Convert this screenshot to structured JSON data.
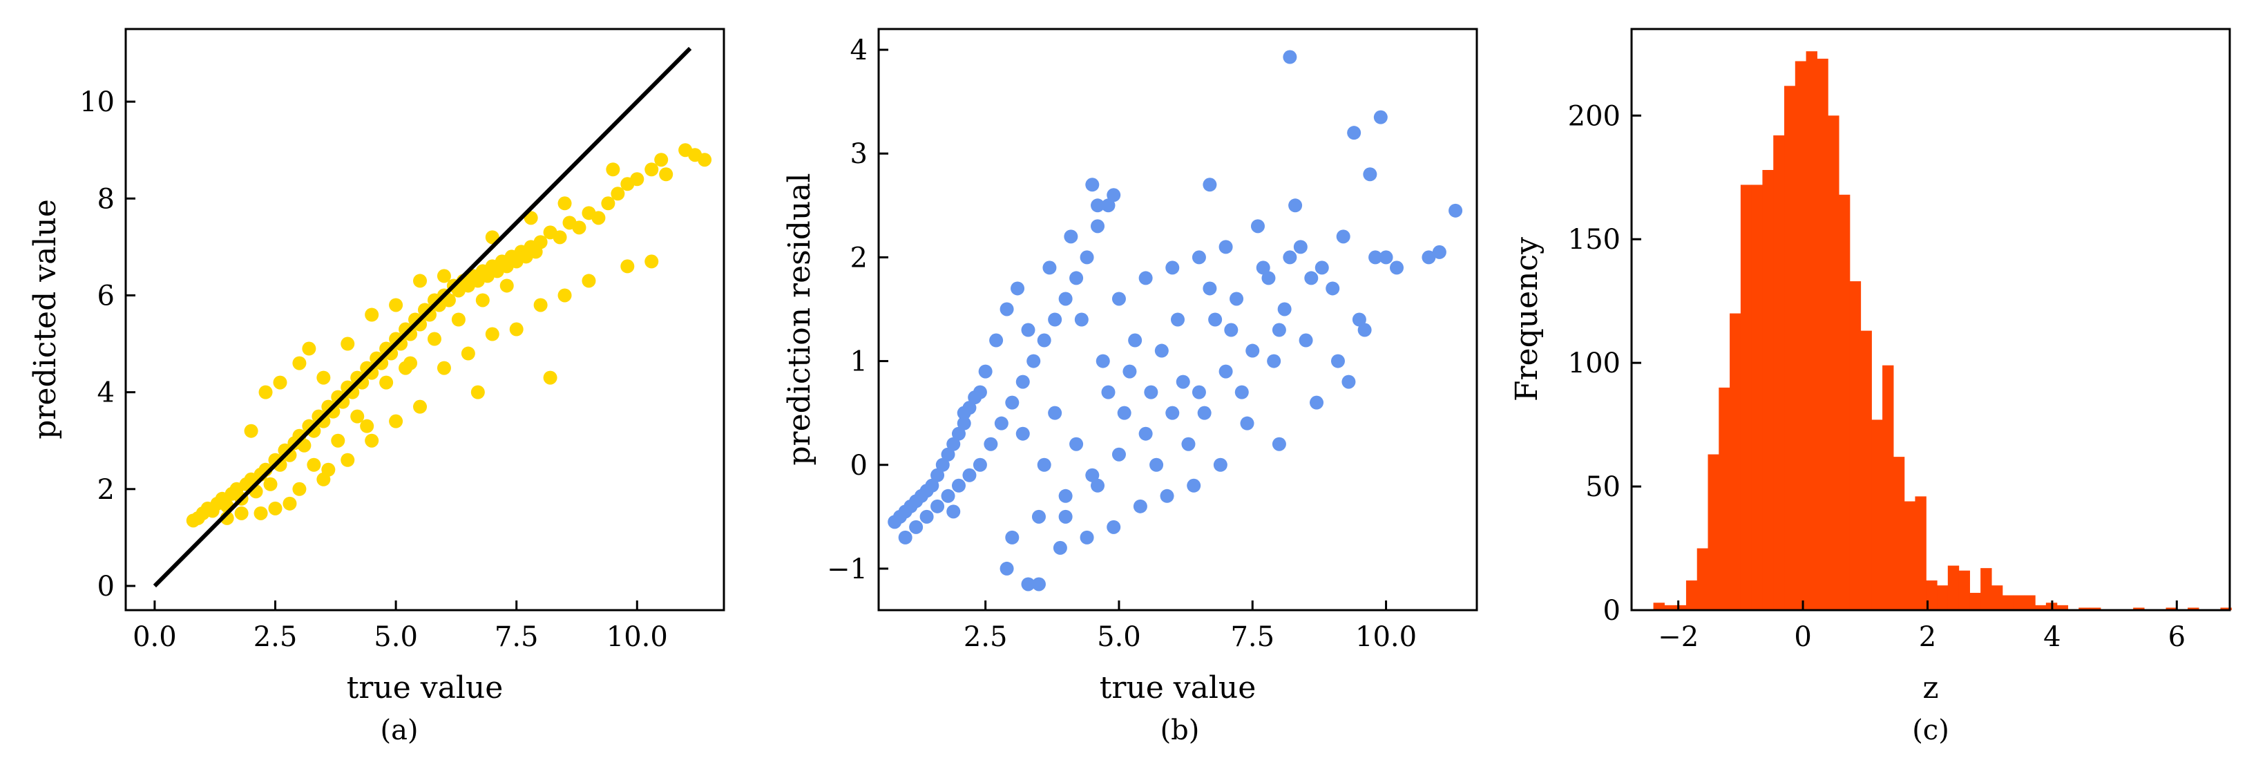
{
  "colors": {
    "panel_a_points": "#FFD700",
    "panel_b_points": "#6495ED",
    "panel_c_bars": "#FF4500",
    "identity_line": "#000000",
    "axes": "#000000"
  },
  "chart_data": [
    {
      "id": "a",
      "type": "scatter",
      "panel_label": "(a)",
      "xlabel": "true value",
      "ylabel": "predicted value",
      "xlim": [
        -0.6,
        11.8
      ],
      "ylim": [
        -0.5,
        11.5
      ],
      "xticks": [
        0.0,
        2.5,
        5.0,
        7.5,
        10.0
      ],
      "xtick_labels": [
        "0.0",
        "2.5",
        "5.0",
        "7.5",
        "10.0"
      ],
      "yticks": [
        0,
        2,
        4,
        6,
        8,
        10
      ],
      "ytick_labels": [
        "0",
        "2",
        "4",
        "6",
        "8",
        "10"
      ],
      "reference_line": {
        "x": [
          0,
          11.1
        ],
        "y": [
          0,
          11.1
        ]
      },
      "points": [
        [
          0.8,
          1.35
        ],
        [
          0.9,
          1.4
        ],
        [
          1.0,
          1.5
        ],
        [
          1.1,
          1.6
        ],
        [
          1.2,
          1.55
        ],
        [
          1.3,
          1.7
        ],
        [
          1.4,
          1.8
        ],
        [
          1.5,
          1.65
        ],
        [
          1.6,
          1.9
        ],
        [
          1.7,
          2.0
        ],
        [
          1.8,
          1.8
        ],
        [
          1.9,
          2.1
        ],
        [
          2.0,
          2.2
        ],
        [
          2.1,
          1.95
        ],
        [
          2.2,
          2.3
        ],
        [
          2.3,
          2.4
        ],
        [
          2.4,
          2.1
        ],
        [
          2.5,
          2.6
        ],
        [
          2.6,
          2.5
        ],
        [
          2.7,
          2.8
        ],
        [
          2.8,
          2.7
        ],
        [
          2.9,
          2.95
        ],
        [
          3.0,
          3.1
        ],
        [
          3.1,
          2.9
        ],
        [
          3.2,
          3.3
        ],
        [
          3.3,
          3.2
        ],
        [
          3.4,
          3.5
        ],
        [
          3.5,
          3.4
        ],
        [
          3.6,
          3.7
        ],
        [
          3.7,
          3.6
        ],
        [
          3.8,
          3.9
        ],
        [
          3.9,
          3.8
        ],
        [
          4.0,
          4.1
        ],
        [
          4.1,
          4.0
        ],
        [
          4.2,
          4.3
        ],
        [
          4.3,
          4.2
        ],
        [
          4.4,
          4.5
        ],
        [
          4.5,
          4.4
        ],
        [
          4.6,
          4.7
        ],
        [
          4.7,
          4.6
        ],
        [
          4.8,
          4.9
        ],
        [
          4.9,
          4.8
        ],
        [
          5.0,
          5.1
        ],
        [
          5.1,
          5.0
        ],
        [
          5.2,
          5.3
        ],
        [
          5.3,
          5.2
        ],
        [
          5.4,
          5.5
        ],
        [
          5.5,
          5.4
        ],
        [
          5.6,
          5.7
        ],
        [
          5.7,
          5.6
        ],
        [
          5.8,
          5.9
        ],
        [
          5.9,
          5.8
        ],
        [
          6.0,
          6.0
        ],
        [
          6.1,
          5.9
        ],
        [
          6.2,
          6.2
        ],
        [
          6.3,
          6.1
        ],
        [
          6.4,
          6.3
        ],
        [
          6.5,
          6.2
        ],
        [
          6.6,
          6.4
        ],
        [
          6.7,
          6.3
        ],
        [
          6.8,
          6.5
        ],
        [
          6.9,
          6.4
        ],
        [
          7.0,
          6.6
        ],
        [
          7.1,
          6.5
        ],
        [
          7.2,
          6.7
        ],
        [
          7.3,
          6.6
        ],
        [
          7.4,
          6.8
        ],
        [
          7.5,
          6.7
        ],
        [
          7.6,
          6.9
        ],
        [
          7.7,
          6.8
        ],
        [
          7.8,
          7.0
        ],
        [
          7.9,
          6.9
        ],
        [
          8.0,
          7.1
        ],
        [
          8.2,
          7.3
        ],
        [
          8.4,
          7.2
        ],
        [
          8.6,
          7.5
        ],
        [
          8.8,
          7.4
        ],
        [
          9.0,
          7.7
        ],
        [
          9.2,
          7.6
        ],
        [
          9.4,
          7.9
        ],
        [
          9.6,
          8.1
        ],
        [
          9.8,
          8.3
        ],
        [
          10.0,
          8.4
        ],
        [
          10.3,
          8.6
        ],
        [
          10.6,
          8.5
        ],
        [
          11.0,
          9.0
        ],
        [
          11.2,
          8.9
        ],
        [
          11.4,
          8.8
        ],
        [
          2.0,
          3.2
        ],
        [
          2.3,
          4.0
        ],
        [
          2.6,
          4.2
        ],
        [
          3.0,
          4.6
        ],
        [
          3.2,
          4.9
        ],
        [
          3.5,
          4.3
        ],
        [
          4.0,
          5.0
        ],
        [
          4.5,
          5.6
        ],
        [
          5.0,
          5.8
        ],
        [
          5.5,
          6.3
        ],
        [
          6.0,
          6.4
        ],
        [
          7.0,
          7.2
        ],
        [
          7.8,
          7.6
        ],
        [
          8.5,
          7.9
        ],
        [
          9.5,
          8.6
        ],
        [
          10.5,
          8.8
        ],
        [
          8.2,
          4.3
        ],
        [
          6.7,
          4.0
        ],
        [
          9.8,
          6.6
        ],
        [
          10.3,
          6.7
        ],
        [
          2.5,
          1.6
        ],
        [
          3.0,
          2.0
        ],
        [
          3.5,
          2.2
        ],
        [
          4.0,
          2.6
        ],
        [
          4.5,
          3.0
        ],
        [
          5.0,
          3.4
        ],
        [
          5.5,
          3.7
        ],
        [
          6.0,
          4.5
        ],
        [
          6.5,
          4.8
        ],
        [
          7.0,
          5.2
        ],
        [
          7.5,
          5.3
        ],
        [
          8.0,
          5.8
        ],
        [
          8.5,
          6.0
        ],
        [
          9.0,
          6.3
        ],
        [
          1.5,
          1.4
        ],
        [
          1.8,
          1.5
        ],
        [
          2.2,
          1.5
        ],
        [
          2.8,
          1.7
        ],
        [
          3.3,
          2.5
        ],
        [
          3.8,
          3.0
        ],
        [
          4.2,
          3.5
        ],
        [
          4.8,
          4.2
        ],
        [
          5.3,
          4.6
        ],
        [
          5.8,
          5.1
        ],
        [
          6.3,
          5.5
        ],
        [
          6.8,
          5.9
        ],
        [
          7.3,
          6.2
        ],
        [
          3.6,
          2.4
        ],
        [
          4.4,
          3.3
        ],
        [
          5.2,
          4.5
        ]
      ]
    },
    {
      "id": "b",
      "type": "scatter",
      "panel_label": "(b)",
      "xlabel": "true value",
      "ylabel": "prediction residual",
      "xlim": [
        0.5,
        11.7
      ],
      "ylim": [
        -1.4,
        4.2
      ],
      "xticks": [
        2.5,
        5.0,
        7.5,
        10.0
      ],
      "xtick_labels": [
        "2.5",
        "5.0",
        "7.5",
        "10.0"
      ],
      "yticks": [
        -1,
        0,
        1,
        2,
        3,
        4
      ],
      "ytick_labels": [
        "−1",
        "0",
        "1",
        "2",
        "3",
        "4"
      ],
      "points": [
        [
          0.8,
          -0.55
        ],
        [
          0.9,
          -0.5
        ],
        [
          1.0,
          -0.45
        ],
        [
          1.1,
          -0.4
        ],
        [
          1.2,
          -0.35
        ],
        [
          1.3,
          -0.3
        ],
        [
          1.4,
          -0.25
        ],
        [
          1.5,
          -0.2
        ],
        [
          1.6,
          -0.1
        ],
        [
          1.7,
          0.0
        ],
        [
          1.8,
          0.1
        ],
        [
          1.9,
          0.2
        ],
        [
          2.0,
          0.3
        ],
        [
          2.1,
          0.4
        ],
        [
          2.2,
          0.55
        ],
        [
          2.3,
          0.65
        ],
        [
          1.0,
          -0.7
        ],
        [
          1.2,
          -0.6
        ],
        [
          1.4,
          -0.5
        ],
        [
          1.6,
          -0.4
        ],
        [
          1.8,
          -0.3
        ],
        [
          2.0,
          -0.2
        ],
        [
          2.2,
          -0.1
        ],
        [
          2.4,
          0.0
        ],
        [
          2.6,
          0.2
        ],
        [
          2.8,
          0.4
        ],
        [
          3.0,
          0.6
        ],
        [
          3.2,
          0.8
        ],
        [
          3.4,
          1.0
        ],
        [
          3.6,
          1.2
        ],
        [
          3.8,
          1.4
        ],
        [
          4.0,
          1.6
        ],
        [
          4.2,
          1.8
        ],
        [
          4.4,
          2.0
        ],
        [
          4.6,
          2.3
        ],
        [
          4.8,
          2.5
        ],
        [
          2.9,
          -1.0
        ],
        [
          3.3,
          -1.15
        ],
        [
          3.5,
          -1.15
        ],
        [
          3.0,
          -0.7
        ],
        [
          3.5,
          -0.5
        ],
        [
          4.0,
          -0.3
        ],
        [
          4.5,
          -0.1
        ],
        [
          5.0,
          0.1
        ],
        [
          5.5,
          0.3
        ],
        [
          6.0,
          0.5
        ],
        [
          6.5,
          0.7
        ],
        [
          7.0,
          0.9
        ],
        [
          7.5,
          1.1
        ],
        [
          8.0,
          1.3
        ],
        [
          3.2,
          0.3
        ],
        [
          3.8,
          0.5
        ],
        [
          4.2,
          0.2
        ],
        [
          4.8,
          0.7
        ],
        [
          5.2,
          0.9
        ],
        [
          5.8,
          1.1
        ],
        [
          6.2,
          0.8
        ],
        [
          6.8,
          1.4
        ],
        [
          7.2,
          1.6
        ],
        [
          7.8,
          1.8
        ],
        [
          8.2,
          2.0
        ],
        [
          8.8,
          1.9
        ],
        [
          9.2,
          2.2
        ],
        [
          9.8,
          2.0
        ],
        [
          10.2,
          1.9
        ],
        [
          10.8,
          2.0
        ],
        [
          11.3,
          2.45
        ],
        [
          11.0,
          2.05
        ],
        [
          9.9,
          3.35
        ],
        [
          9.4,
          3.2
        ],
        [
          8.2,
          3.93
        ],
        [
          9.7,
          2.8
        ],
        [
          6.7,
          2.7
        ],
        [
          4.5,
          2.7
        ],
        [
          4.9,
          2.6
        ],
        [
          4.6,
          2.5
        ],
        [
          7.6,
          2.3
        ],
        [
          8.4,
          2.1
        ],
        [
          9.6,
          1.3
        ],
        [
          9.3,
          0.8
        ],
        [
          8.7,
          0.6
        ],
        [
          8.0,
          0.2
        ],
        [
          7.4,
          0.4
        ],
        [
          6.9,
          0.0
        ],
        [
          6.4,
          -0.2
        ],
        [
          5.9,
          -0.3
        ],
        [
          5.4,
          -0.4
        ],
        [
          4.9,
          -0.6
        ],
        [
          4.4,
          -0.7
        ],
        [
          3.9,
          -0.8
        ],
        [
          5.0,
          1.6
        ],
        [
          5.5,
          1.8
        ],
        [
          6.0,
          1.9
        ],
        [
          6.5,
          2.0
        ],
        [
          7.0,
          2.1
        ],
        [
          5.3,
          1.2
        ],
        [
          6.1,
          1.4
        ],
        [
          7.1,
          1.3
        ],
        [
          8.1,
          1.5
        ],
        [
          9.0,
          1.7
        ],
        [
          2.5,
          0.9
        ],
        [
          2.7,
          1.2
        ],
        [
          2.9,
          1.5
        ],
        [
          3.1,
          1.7
        ],
        [
          3.3,
          1.3
        ],
        [
          3.7,
          1.9
        ],
        [
          4.1,
          2.2
        ],
        [
          4.3,
          1.4
        ],
        [
          4.7,
          1.0
        ],
        [
          5.1,
          0.5
        ],
        [
          5.7,
          0.0
        ],
        [
          6.3,
          0.2
        ],
        [
          6.6,
          0.5
        ],
        [
          7.3,
          0.7
        ],
        [
          7.9,
          1.0
        ],
        [
          8.5,
          1.2
        ],
        [
          9.1,
          1.0
        ],
        [
          9.5,
          1.4
        ],
        [
          10.0,
          2.0
        ],
        [
          3.6,
          0.0
        ],
        [
          4.0,
          -0.5
        ],
        [
          4.6,
          -0.2
        ],
        [
          5.6,
          0.7
        ],
        [
          6.7,
          1.7
        ],
        [
          7.7,
          1.9
        ],
        [
          8.3,
          2.5
        ],
        [
          8.6,
          1.8
        ],
        [
          2.4,
          0.7
        ],
        [
          2.1,
          0.5
        ],
        [
          1.9,
          -0.45
        ]
      ]
    },
    {
      "id": "c",
      "type": "bar",
      "subtype": "histogram",
      "panel_label": "(c)",
      "xlabel": "z",
      "ylabel": "Frequency",
      "xlim": [
        -2.75,
        6.85
      ],
      "ylim": [
        0,
        235
      ],
      "xticks": [
        -2,
        0,
        2,
        4,
        6
      ],
      "xtick_labels": [
        "−2",
        "0",
        "2",
        "4",
        "6"
      ],
      "yticks": [
        0,
        50,
        100,
        150,
        200
      ],
      "ytick_labels": [
        "0",
        "50",
        "100",
        "150",
        "200"
      ],
      "bin_start": -2.4,
      "bin_width": 0.175,
      "counts": [
        3,
        2,
        2,
        12,
        25,
        63,
        90,
        120,
        172,
        172,
        178,
        192,
        212,
        222,
        226,
        223,
        200,
        168,
        133,
        113,
        77,
        99,
        62,
        44,
        46,
        12,
        10,
        18,
        16,
        7,
        17,
        10,
        6,
        6,
        6,
        2,
        3,
        2,
        0,
        1,
        1,
        0,
        0,
        0,
        1,
        0,
        0,
        1,
        0,
        1,
        0,
        0,
        1
      ]
    }
  ]
}
